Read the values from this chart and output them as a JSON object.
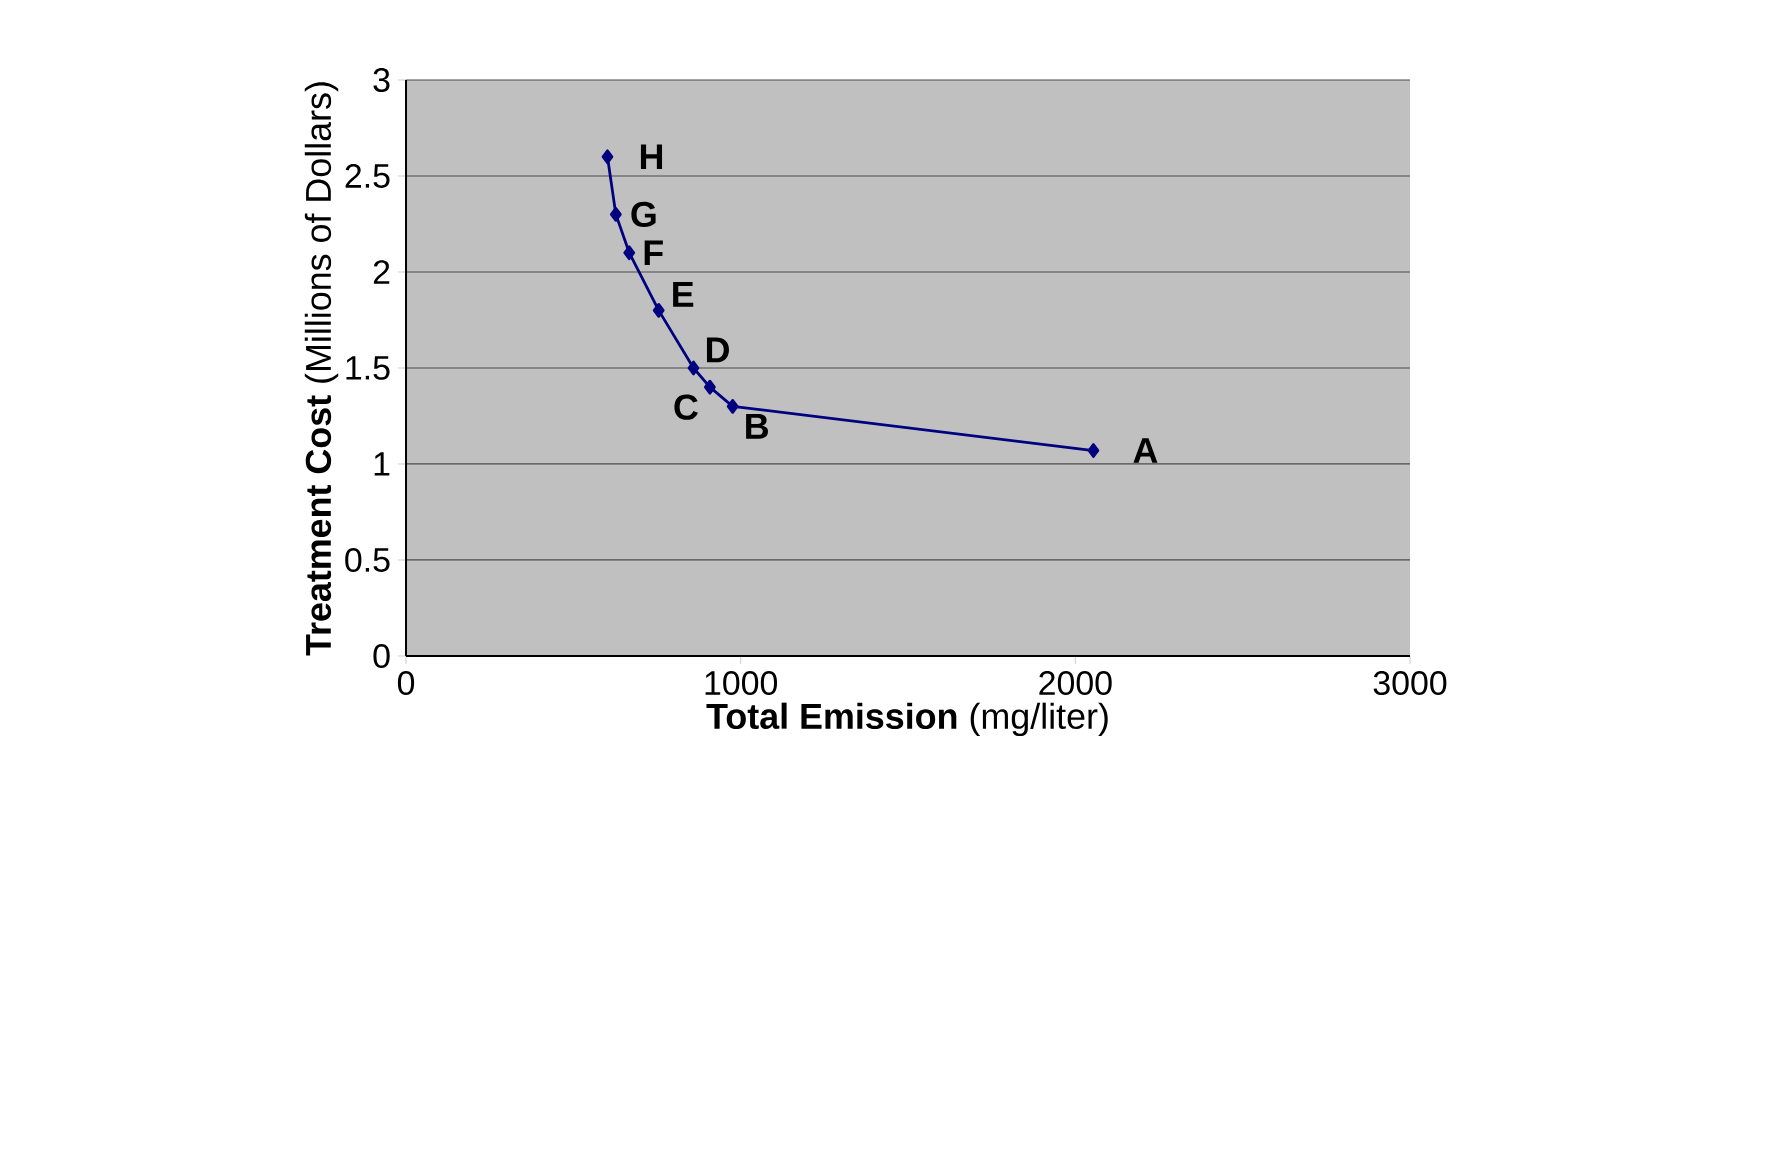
{
  "chart_data": {
    "type": "line",
    "xlabel": "**Total Emission**  (mg/liter)",
    "ylabel": "**Treatment Cost** (Millions of Dollars)",
    "x": [
      2054,
      976,
      908,
      859,
      755,
      667,
      627,
      602
    ],
    "series": [
      {
        "color": "#000080",
        "values": [
          1.07,
          1.3,
          1.4,
          1.5,
          1.8,
          2.1,
          2.3,
          2.6
        ]
      }
    ],
    "annotations": [
      {
        "text": "A",
        "x": 2054,
        "y": 1.07
      },
      {
        "text": "B",
        "x": 976,
        "y": 1.3
      },
      {
        "text": "C",
        "x": 908,
        "y": 1.4
      },
      {
        "text": "D",
        "x": 859,
        "y": 1.5
      },
      {
        "text": "E",
        "x": 755,
        "y": 1.8
      },
      {
        "text": "F",
        "x": 667,
        "y": 2.1
      },
      {
        "text": "G",
        "x": 627,
        "y": 2.3
      },
      {
        "text": "H",
        "x": 602,
        "y": 2.6
      }
    ],
    "xlim": [
      0,
      3000
    ],
    "ylim": [
      0,
      3
    ],
    "xticks": [
      0,
      1000,
      2000,
      3000
    ],
    "yticks": [
      0,
      0.5,
      1,
      1.5,
      2,
      2.5,
      3
    ],
    "grid": "y",
    "marker": "diamond",
    "line_style": "solid"
  }
}
